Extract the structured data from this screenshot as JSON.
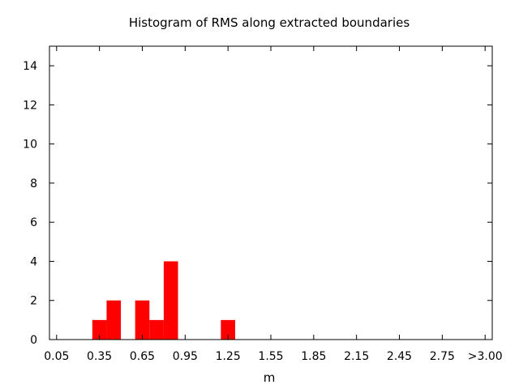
{
  "chart_data": {
    "type": "bar",
    "title": "Histogram of RMS along extracted boundaries",
    "xlabel": "m",
    "ylabel": "",
    "bin_width": 0.1,
    "xlim": [
      0.0,
      3.1
    ],
    "ylim": [
      0,
      15
    ],
    "x_ticks": [
      {
        "value": 0.05,
        "label": "0.05"
      },
      {
        "value": 0.35,
        "label": "0.35"
      },
      {
        "value": 0.65,
        "label": "0.65"
      },
      {
        "value": 0.95,
        "label": "0.95"
      },
      {
        "value": 1.25,
        "label": "1.25"
      },
      {
        "value": 1.55,
        "label": "1.55"
      },
      {
        "value": 1.85,
        "label": "1.85"
      },
      {
        "value": 2.15,
        "label": "2.15"
      },
      {
        "value": 2.45,
        "label": "2.45"
      },
      {
        "value": 2.75,
        "label": "2.75"
      },
      {
        "value": 3.05,
        "label": ">3.00"
      }
    ],
    "y_ticks": [
      0,
      2,
      4,
      6,
      8,
      10,
      12,
      14
    ],
    "bar_color": "#ff0000",
    "x": [
      0.35,
      0.45,
      0.65,
      0.75,
      0.85,
      1.25
    ],
    "values": [
      1,
      2,
      2,
      1,
      4,
      1
    ],
    "grid": false,
    "legend": "none"
  }
}
